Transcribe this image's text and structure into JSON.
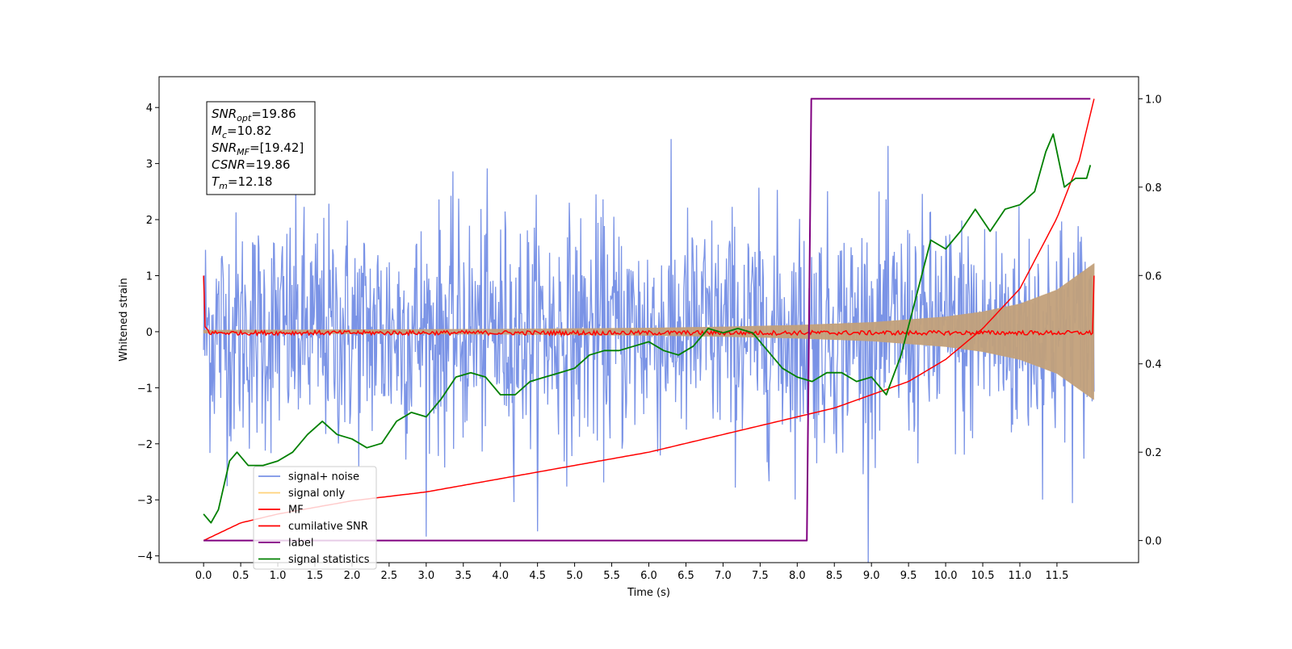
{
  "chart_data": {
    "type": "line",
    "xlabel": "Time (s)",
    "ylabel": "Whitened strain",
    "xlim": [
      -0.6,
      12.6
    ],
    "ylim": [
      -4.12,
      4.55
    ],
    "y2lim": [
      -0.05,
      1.05
    ],
    "x_ticks": [
      0.0,
      0.5,
      1.0,
      1.5,
      2.0,
      2.5,
      3.0,
      3.5,
      4.0,
      4.5,
      5.0,
      5.5,
      6.0,
      6.5,
      7.0,
      7.5,
      8.0,
      8.5,
      9.0,
      9.5,
      10.0,
      10.5,
      11.0,
      11.5
    ],
    "x_tick_labels": [
      "0.0",
      "0.5",
      "1.0",
      "1.5",
      "2.0",
      "2.5",
      "3.0",
      "3.5",
      "4.0",
      "4.5",
      "5.0",
      "5.5",
      "6.0",
      "6.5",
      "7.0",
      "7.5",
      "8.0",
      "8.5",
      "9.0",
      "9.5",
      "10.0",
      "10.5",
      "11.0",
      "11.5"
    ],
    "y_ticks": [
      -4,
      -3,
      -2,
      -1,
      0,
      1,
      2,
      3,
      4
    ],
    "y_tick_labels": [
      "−4",
      "−3",
      "−2",
      "−1",
      "0",
      "1",
      "2",
      "3",
      "4"
    ],
    "y2_ticks": [
      0.0,
      0.2,
      0.4,
      0.6,
      0.8,
      1.0
    ],
    "y2_tick_labels": [
      "0.0",
      "0.2",
      "0.4",
      "0.6",
      "0.8",
      "1.0"
    ],
    "grid": false,
    "legend_position": "lower-left",
    "annotation": [
      {
        "base": "SNR",
        "sub": "opt",
        "value": "=19.86"
      },
      {
        "base": "M",
        "sub": "c",
        "value": "=10.82"
      },
      {
        "base": "SNR",
        "sub": "MF",
        "value": "=[19.42]"
      },
      {
        "base": "CSNR",
        "sub": "",
        "value": "=19.86"
      },
      {
        "base": "T",
        "sub": "m",
        "value": "=12.18"
      }
    ],
    "series": [
      {
        "name": "signal+ noise",
        "color": "#7a93e6",
        "axis": "left",
        "kind": "noise",
        "x_range": [
          0.0,
          12.0
        ],
        "std": 1.0,
        "max_abs": 4.15,
        "samples": 1400
      },
      {
        "name": "signal only",
        "color": "#c2a07a",
        "axis": "left",
        "kind": "chirp-envelope",
        "envelope_x": [
          0.0,
          2.0,
          4.0,
          6.0,
          7.0,
          8.0,
          9.0,
          10.0,
          10.5,
          11.0,
          11.5,
          12.0
        ],
        "envelope_y": [
          0.03,
          0.04,
          0.05,
          0.07,
          0.09,
          0.12,
          0.17,
          0.27,
          0.36,
          0.5,
          0.75,
          1.22
        ]
      },
      {
        "name": "MF",
        "color": "#ff0000",
        "axis": "left",
        "kind": "matched-filter",
        "x_range": [
          0.0,
          12.0
        ],
        "start_value": 1.0,
        "end_value": 1.0,
        "baseline": -0.02,
        "jitter": 0.04
      },
      {
        "name": "cumilative SNR",
        "color": "#ff0000",
        "axis": "right",
        "x": [
          0.0,
          0.5,
          1.0,
          2.0,
          3.0,
          4.0,
          5.0,
          6.0,
          7.0,
          8.0,
          8.5,
          9.0,
          9.5,
          10.0,
          10.5,
          11.0,
          11.5,
          11.8,
          12.0
        ],
        "y": [
          0.0,
          0.04,
          0.06,
          0.09,
          0.11,
          0.14,
          0.17,
          0.2,
          0.24,
          0.28,
          0.3,
          0.33,
          0.36,
          0.41,
          0.48,
          0.57,
          0.73,
          0.86,
          1.0
        ]
      },
      {
        "name": "label",
        "color": "#800080",
        "axis": "right",
        "x": [
          0.0,
          8.13,
          8.19,
          11.95
        ],
        "y": [
          0.0,
          0.0,
          1.0,
          1.0
        ]
      },
      {
        "name": "signal statistics",
        "color": "#008000",
        "axis": "right",
        "x": [
          0.0,
          0.1,
          0.2,
          0.35,
          0.45,
          0.6,
          0.8,
          1.0,
          1.2,
          1.4,
          1.6,
          1.8,
          2.0,
          2.2,
          2.4,
          2.6,
          2.8,
          3.0,
          3.2,
          3.4,
          3.6,
          3.8,
          4.0,
          4.2,
          4.4,
          4.6,
          4.8,
          5.0,
          5.2,
          5.4,
          5.6,
          5.8,
          6.0,
          6.2,
          6.4,
          6.6,
          6.8,
          7.0,
          7.2,
          7.4,
          7.6,
          7.8,
          8.0,
          8.2,
          8.4,
          8.6,
          8.8,
          9.0,
          9.2,
          9.4,
          9.6,
          9.8,
          10.0,
          10.2,
          10.4,
          10.6,
          10.8,
          11.0,
          11.2,
          11.35,
          11.45,
          11.6,
          11.75,
          11.9,
          11.95
        ],
        "y": [
          0.06,
          0.04,
          0.07,
          0.18,
          0.2,
          0.17,
          0.17,
          0.18,
          0.2,
          0.24,
          0.27,
          0.24,
          0.23,
          0.21,
          0.22,
          0.27,
          0.29,
          0.28,
          0.32,
          0.37,
          0.38,
          0.37,
          0.33,
          0.33,
          0.36,
          0.37,
          0.38,
          0.39,
          0.42,
          0.43,
          0.43,
          0.44,
          0.45,
          0.43,
          0.42,
          0.44,
          0.48,
          0.47,
          0.48,
          0.47,
          0.43,
          0.39,
          0.37,
          0.36,
          0.38,
          0.38,
          0.36,
          0.37,
          0.33,
          0.42,
          0.55,
          0.68,
          0.66,
          0.7,
          0.75,
          0.7,
          0.75,
          0.76,
          0.79,
          0.88,
          0.92,
          0.8,
          0.82,
          0.82,
          0.85
        ]
      }
    ]
  }
}
